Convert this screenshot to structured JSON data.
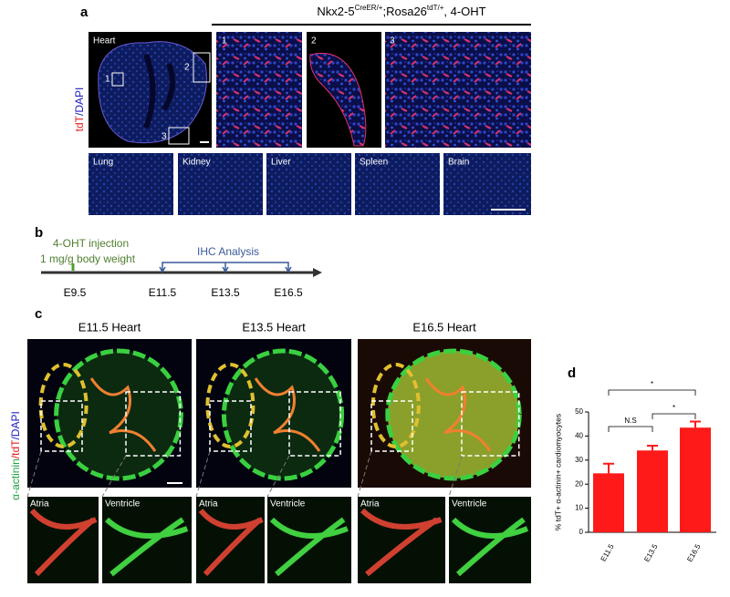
{
  "panel_a": {
    "label": "a",
    "title": [
      "Nkx2-5",
      "CreER/+",
      ";Rosa26",
      "tdT/+",
      ", 4-OHT"
    ],
    "stain": [
      "tdT",
      "/DAPI"
    ],
    "heart_label": "Heart",
    "insets": [
      "1",
      "2",
      "3"
    ],
    "zooms": [
      "1",
      "2",
      "3"
    ],
    "tissues": [
      "Lung",
      "Kidney",
      "Liver",
      "Spleen",
      "Brain"
    ]
  },
  "panel_b": {
    "label": "b",
    "injection": "4-OHT injection",
    "dose": "1 mg/g body weight",
    "analysis": "IHC Analysis",
    "timepoints": [
      "E9.5",
      "E11.5",
      "E13.5",
      "E16.5"
    ]
  },
  "panel_c": {
    "label": "c",
    "stain": [
      "α-actinin",
      "/tdT",
      "/DAPI"
    ],
    "panels": [
      {
        "title": "E11.5 Heart",
        "tiles": [
          "Atria",
          "Ventricle"
        ]
      },
      {
        "title": "E13.5 Heart",
        "tiles": [
          "Atria",
          "Ventricle"
        ]
      },
      {
        "title": "E16.5 Heart",
        "tiles": [
          "Atria",
          "Ventricle"
        ]
      }
    ]
  },
  "chart_data": {
    "type": "bar",
    "label": "d",
    "y_label": "% tdT+ α-actinin+ cardiomyocytes",
    "categories": [
      "E11.5",
      "E13.5",
      "E16.5"
    ],
    "values": [
      24.5,
      34,
      43.5
    ],
    "errors": [
      4,
      2,
      2.5
    ],
    "color": "#ff1a1a",
    "ylim": [
      0,
      50
    ],
    "yticks": [
      0,
      10,
      20,
      30,
      40,
      50
    ],
    "significance": [
      "N.S",
      "*",
      "*"
    ]
  }
}
